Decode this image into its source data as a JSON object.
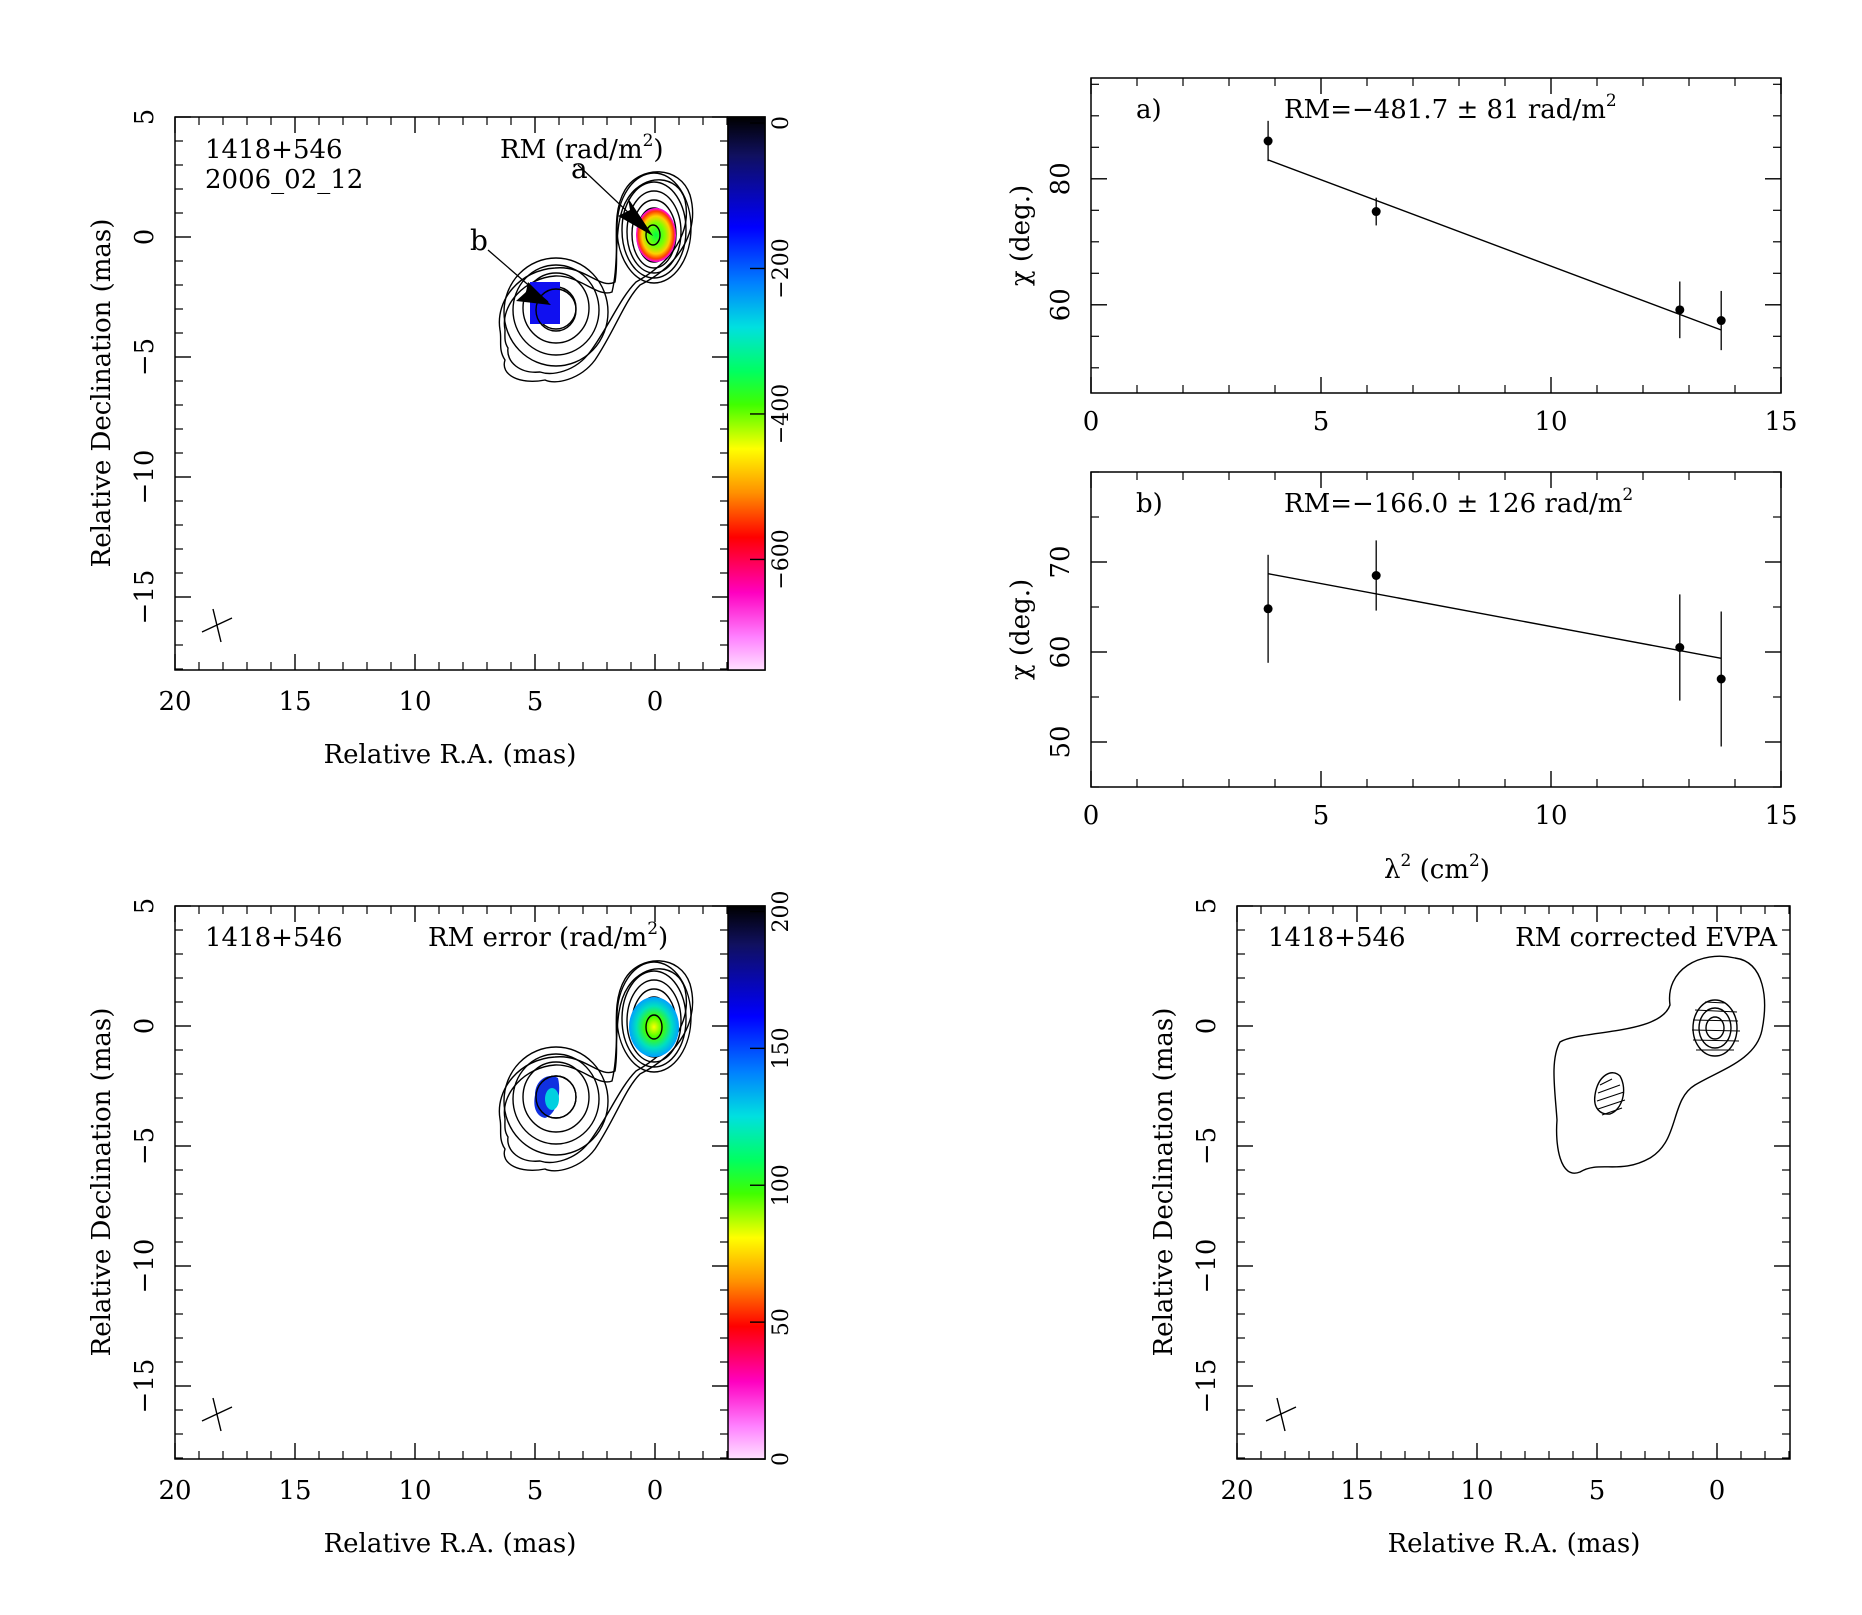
{
  "figure": {
    "rm_map": {
      "source": "1418+546",
      "epoch": "2006_02_12",
      "map_label": "RM (rad/m",
      "map_label_sup": "2",
      "map_label_end": ")",
      "xlabel": "Relative R.A. (mas)",
      "ylabel": "Relative Declination (mas)",
      "xticks": [
        "20",
        "15",
        "10",
        "5",
        "0"
      ],
      "yticks": [
        "5",
        "0",
        "−5",
        "−10",
        "−15"
      ],
      "colorbar_ticks": [
        "0",
        "−200",
        "−400",
        "−600"
      ],
      "marker_a": "a",
      "marker_b": "b",
      "colorbar_colors": [
        "#000000",
        "#101050",
        "#0000c0",
        "#0000ff",
        "#0060ff",
        "#00c0ff",
        "#00e0e0",
        "#00ff80",
        "#00ff00",
        "#80ff00",
        "#ffff00",
        "#ffc000",
        "#ff8000",
        "#ff2000",
        "#ff0000",
        "#ff0080",
        "#ff00ff",
        "#ff80ff",
        "#ffd0ff"
      ]
    },
    "rm_error_map": {
      "source": "1418+546",
      "map_label": "RM error (rad/m",
      "map_label_sup": "2",
      "map_label_end": ")",
      "xlabel": "Relative R.A. (mas)",
      "ylabel": "Relative Declination (mas)",
      "xticks": [
        "20",
        "15",
        "10",
        "5",
        "0"
      ],
      "yticks": [
        "5",
        "0",
        "−5",
        "−10",
        "−15"
      ],
      "colorbar_ticks": [
        "200",
        "150",
        "100",
        "50",
        "0"
      ]
    },
    "evpa_map": {
      "source": "1418+546",
      "map_label": "RM corrected EVPA",
      "xlabel": "Relative R.A. (mas)",
      "ylabel": "Relative Declination (mas)",
      "xticks": [
        "20",
        "15",
        "10",
        "5",
        "0"
      ],
      "yticks": [
        "5",
        "0",
        "−5",
        "−10",
        "−15"
      ]
    },
    "shared_xlabel_pre": "λ",
    "shared_xlabel_sup": "2",
    "shared_xlabel_post": " (cm",
    "shared_xlabel_sup2": "2",
    "shared_xlabel_end": ")"
  },
  "chart_data": [
    {
      "type": "scatter",
      "panel": "a)",
      "annotation": "RM=−481.7 ± 81 rad/m",
      "annotation_sup": "2",
      "ylabel": "χ (deg.)",
      "xlim": [
        0,
        15
      ],
      "ylim": [
        46,
        96
      ],
      "xticks": [
        "0",
        "5",
        "10",
        "15"
      ],
      "yticks": [
        "60",
        "80"
      ],
      "points": [
        {
          "x": 3.85,
          "y": 86.0,
          "err": 3.2
        },
        {
          "x": 6.2,
          "y": 74.8,
          "err": 2.2
        },
        {
          "x": 12.8,
          "y": 59.2,
          "err": 4.5
        },
        {
          "x": 13.7,
          "y": 57.5,
          "err": 4.7
        }
      ],
      "fit": {
        "x": [
          3.85,
          13.7
        ],
        "y": [
          83.0,
          56.0
        ]
      }
    },
    {
      "type": "scatter",
      "panel": "b)",
      "annotation": "RM=−166.0 ± 126 rad/m",
      "annotation_sup": "2",
      "ylabel": "χ (deg.)",
      "xlim": [
        0,
        15
      ],
      "ylim": [
        45,
        80
      ],
      "xticks": [
        "0",
        "5",
        "10",
        "15"
      ],
      "yticks": [
        "50",
        "60",
        "70"
      ],
      "points": [
        {
          "x": 3.85,
          "y": 64.8,
          "err": 6.0
        },
        {
          "x": 6.2,
          "y": 68.5,
          "err": 3.9
        },
        {
          "x": 12.8,
          "y": 60.5,
          "err": 5.9
        },
        {
          "x": 13.7,
          "y": 57.0,
          "err": 7.5
        }
      ],
      "fit": {
        "x": [
          3.85,
          13.7
        ],
        "y": [
          68.7,
          59.3
        ]
      }
    }
  ]
}
